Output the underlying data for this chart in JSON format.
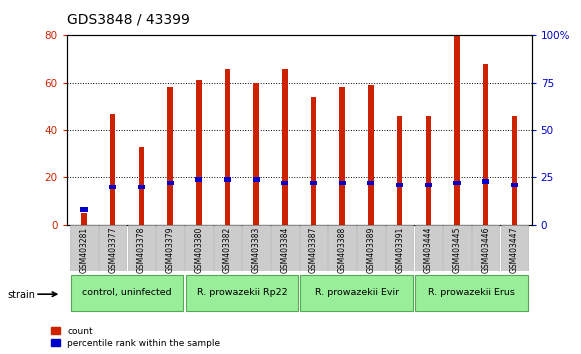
{
  "title": "GDS3848 / 43399",
  "samples": [
    "GSM403281",
    "GSM403377",
    "GSM403378",
    "GSM403379",
    "GSM403380",
    "GSM403382",
    "GSM403383",
    "GSM403384",
    "GSM403387",
    "GSM403388",
    "GSM403389",
    "GSM403391",
    "GSM403444",
    "GSM403445",
    "GSM403446",
    "GSM403447"
  ],
  "counts": [
    5,
    47,
    33,
    58,
    61,
    66,
    60,
    66,
    54,
    58,
    59,
    46,
    46,
    80,
    68,
    46
  ],
  "percentiles": [
    8,
    20,
    20,
    22,
    24,
    24,
    24,
    22,
    22,
    22,
    22,
    21,
    21,
    22,
    23,
    21
  ],
  "bar_color": "#cc2200",
  "percentile_color": "#0000cc",
  "ylim_left": [
    0,
    80
  ],
  "ylim_right": [
    0,
    100
  ],
  "yticks_left": [
    0,
    20,
    40,
    60,
    80
  ],
  "yticks_right": [
    0,
    25,
    50,
    75,
    100
  ],
  "groups": [
    {
      "label": "control, uninfected",
      "start": 0,
      "end": 3
    },
    {
      "label": "R. prowazekii Rp22",
      "start": 4,
      "end": 7
    },
    {
      "label": "R. prowazekii Evir",
      "start": 8,
      "end": 11
    },
    {
      "label": "R. prowazekii Erus",
      "start": 12,
      "end": 15
    }
  ],
  "legend_count_color": "#cc2200",
  "legend_percentile_color": "#0000cc",
  "strain_label": "strain",
  "title_fontsize": 10,
  "background_color": "#ffffff",
  "plot_bg": "#ffffff",
  "tick_label_color_left": "#cc2200",
  "tick_label_color_right": "#0000cc",
  "group_color": "#99ee99",
  "group_border": "#55aa55",
  "sample_box_color": "#cccccc",
  "sample_box_border": "#aaaaaa"
}
